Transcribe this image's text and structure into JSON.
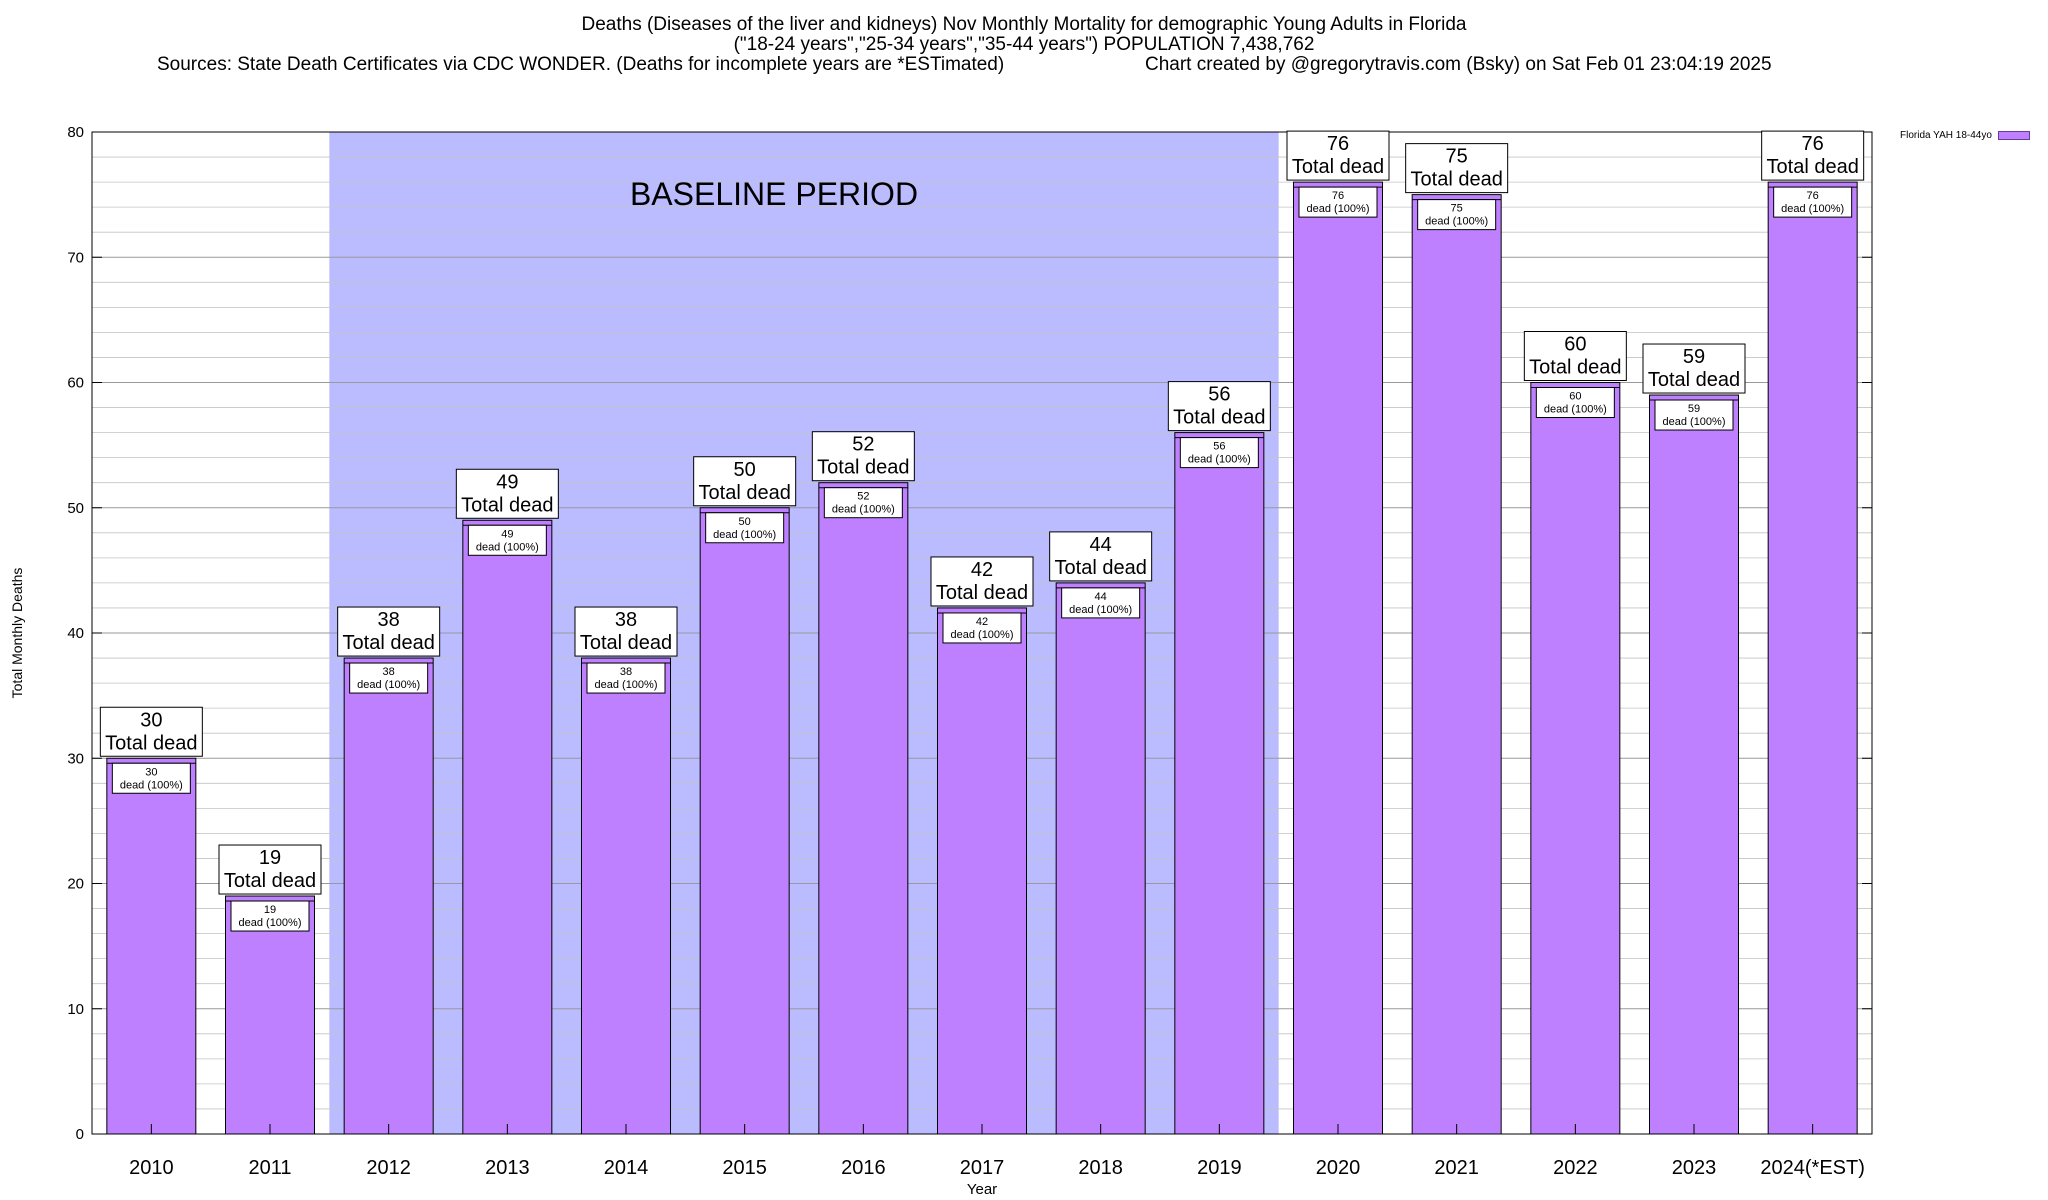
{
  "header": {
    "title_line1": "Deaths (Diseases of the liver and kidneys) Nov Monthly Mortality for demographic Young Adults in Florida",
    "title_line2": "(\"18-24 years\",\"25-34 years\",\"35-44 years\") POPULATION 7,438,762",
    "sources": "Sources: State Death Certificates via CDC WONDER. (Deaths for incomplete years are *ESTimated)",
    "credit": "Chart created by @gregorytravis.com (Bsky) on Sat Feb 01 23:04:19 2025"
  },
  "chart_data": {
    "type": "bar",
    "xlabel": "Year",
    "ylabel": "Total Monthly Deaths",
    "ylim": [
      0,
      80
    ],
    "yticks": [
      0,
      10,
      20,
      30,
      40,
      50,
      60,
      70,
      80
    ],
    "categories": [
      "2010",
      "2011",
      "2012",
      "2013",
      "2014",
      "2015",
      "2016",
      "2017",
      "2018",
      "2019",
      "2020",
      "2021",
      "2022",
      "2023",
      "2024(*EST)"
    ],
    "series": [
      {
        "name": "Florida YAH 18-44yo",
        "values": [
          30,
          19,
          38,
          49,
          38,
          50,
          52,
          42,
          44,
          56,
          76,
          75,
          60,
          59,
          76
        ]
      }
    ],
    "inner_label_suffix": "dead (100%)",
    "outer_label_suffix": "Total dead",
    "baseline": {
      "label": "BASELINE PERIOD",
      "from": "2012",
      "to": "2019"
    },
    "grid": true,
    "legend_position": "top-right",
    "colors": {
      "bar": "#bf80ff",
      "bar_edge": "#000000",
      "baseline_shade": "#bbbbff"
    }
  }
}
